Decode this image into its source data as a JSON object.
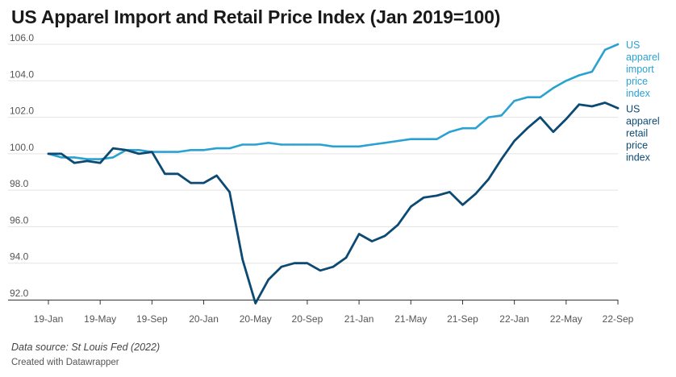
{
  "title": "US Apparel Import and Retail Price Index (Jan 2019=100)",
  "source": "Data source: St Louis Fed (2022)",
  "credit": "Created with Datawrapper",
  "chart_data": {
    "type": "line",
    "title": "US Apparel Import and Retail Price Index (Jan 2019=100)",
    "xlabel": "",
    "ylabel": "",
    "ylim": [
      92.0,
      106.0
    ],
    "yticks": [
      92.0,
      94.0,
      96.0,
      98.0,
      100.0,
      102.0,
      104.0,
      106.0
    ],
    "ytick_labels": [
      "92.0",
      "94.0",
      "96.0",
      "98.0",
      "100.0",
      "102.0",
      "104.0",
      "106.0"
    ],
    "xtick_labels": [
      "19-Jan",
      "19-May",
      "19-Sep",
      "20-Jan",
      "20-May",
      "20-Sep",
      "21-Jan",
      "21-May",
      "21-Sep",
      "22-Jan",
      "22-May",
      "22-Sep"
    ],
    "x": [
      "2019-01",
      "2019-02",
      "2019-03",
      "2019-04",
      "2019-05",
      "2019-06",
      "2019-07",
      "2019-08",
      "2019-09",
      "2019-10",
      "2019-11",
      "2019-12",
      "2020-01",
      "2020-02",
      "2020-03",
      "2020-04",
      "2020-05",
      "2020-06",
      "2020-07",
      "2020-08",
      "2020-09",
      "2020-10",
      "2020-11",
      "2020-12",
      "2021-01",
      "2021-02",
      "2021-03",
      "2021-04",
      "2021-05",
      "2021-06",
      "2021-07",
      "2021-08",
      "2021-09",
      "2021-10",
      "2021-11",
      "2021-12",
      "2022-01",
      "2022-02",
      "2022-03",
      "2022-04",
      "2022-05",
      "2022-06",
      "2022-07",
      "2022-08",
      "2022-09"
    ],
    "grid": true,
    "series": [
      {
        "name": "US apparel import price index",
        "label_lines": [
          "US",
          "apparel",
          "import",
          "price",
          "index"
        ],
        "color": "#2aa2d1",
        "values": [
          100.0,
          99.8,
          99.8,
          99.7,
          99.7,
          99.8,
          100.2,
          100.2,
          100.1,
          100.1,
          100.1,
          100.2,
          100.2,
          100.3,
          100.3,
          100.5,
          100.5,
          100.6,
          100.5,
          100.5,
          100.5,
          100.5,
          100.4,
          100.4,
          100.4,
          100.5,
          100.6,
          100.7,
          100.8,
          100.8,
          100.8,
          101.2,
          101.4,
          101.4,
          102.0,
          102.1,
          102.9,
          103.1,
          103.1,
          103.6,
          104.0,
          104.3,
          104.5,
          105.7,
          106.0
        ]
      },
      {
        "name": "US apparel retail price index",
        "label_lines": [
          "US",
          "apparel",
          "retail",
          "price",
          "index"
        ],
        "color": "#0c4a73",
        "values": [
          100.0,
          100.0,
          99.5,
          99.6,
          99.5,
          100.3,
          100.2,
          100.0,
          100.1,
          98.9,
          98.9,
          98.4,
          98.4,
          98.8,
          97.9,
          94.2,
          91.8,
          93.1,
          93.8,
          94.0,
          94.0,
          93.6,
          93.8,
          94.3,
          95.6,
          95.2,
          95.5,
          96.1,
          97.1,
          97.6,
          97.7,
          97.9,
          97.2,
          97.8,
          98.6,
          99.7,
          100.7,
          101.4,
          102.0,
          101.2,
          101.9,
          102.7,
          102.6,
          102.8,
          102.5
        ]
      }
    ]
  },
  "colors": {
    "grid": "#e3e3e3",
    "axis": "#333333",
    "tick_text": "#555555"
  }
}
